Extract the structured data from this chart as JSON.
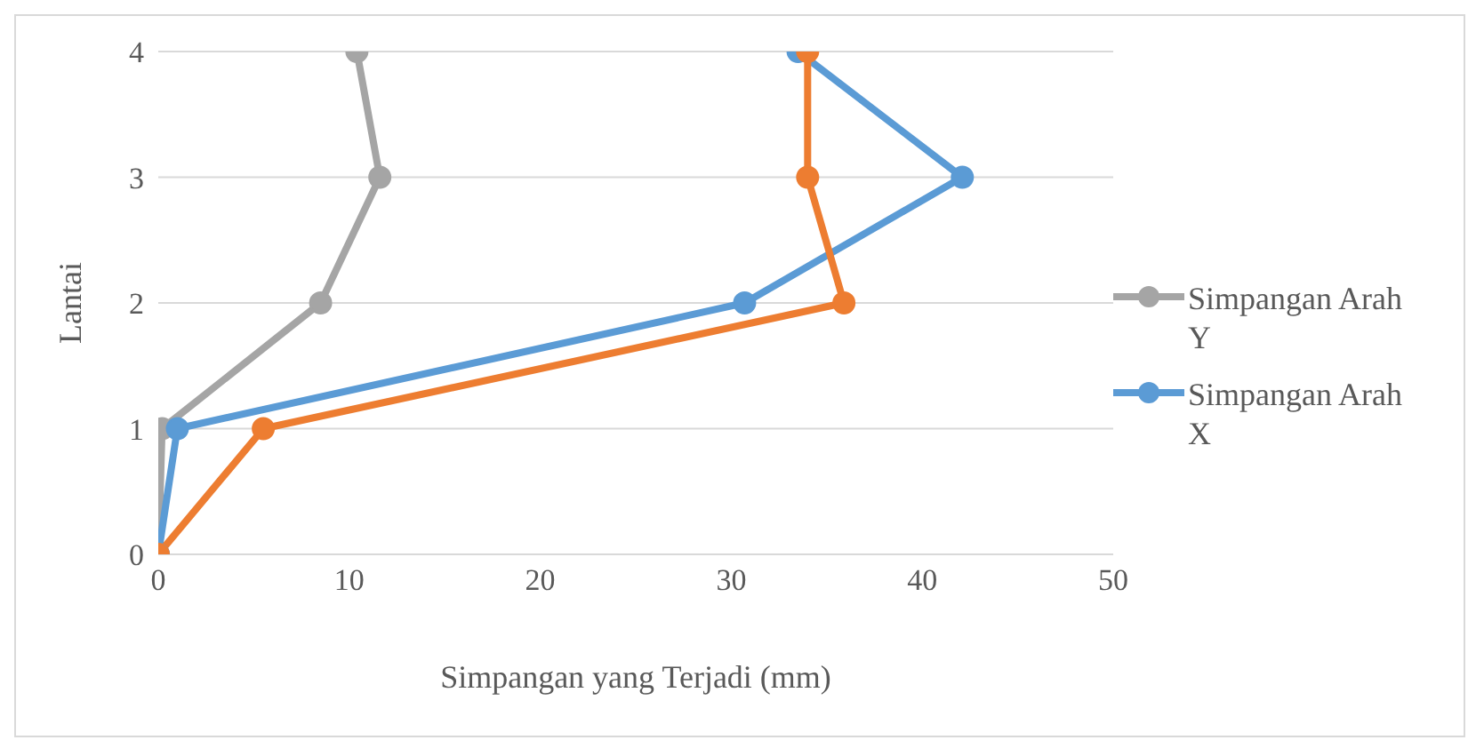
{
  "chart_data": {
    "type": "line",
    "xlabel": "Simpangan yang Terjadi (mm)",
    "ylabel": "Lantai",
    "xlim": [
      0,
      50
    ],
    "xticks": [
      0,
      10,
      20,
      30,
      40,
      50
    ],
    "ylim": [
      0,
      4
    ],
    "yticks": [
      0,
      1,
      2,
      3,
      4
    ],
    "grid": "y",
    "legend": "right",
    "marker": "circle",
    "line_style": "solid",
    "series": [
      {
        "name": "Simpangan Arah Y",
        "color": "#a5a5a5",
        "x": [
          0,
          0.2,
          8.5,
          11.6,
          10.4
        ],
        "values": [
          0,
          1,
          2,
          3,
          4
        ]
      },
      {
        "name": "Simpangan Arah X",
        "color": "#5b9bd5",
        "x": [
          0,
          1.0,
          30.7,
          42.1,
          33.5
        ],
        "values": [
          0,
          1,
          2,
          3,
          4
        ]
      },
      {
        "color": "#ed7d31",
        "x": [
          0,
          5.5,
          35.9,
          34.0,
          34.0
        ],
        "values": [
          0,
          1,
          2,
          3,
          4
        ]
      }
    ]
  }
}
